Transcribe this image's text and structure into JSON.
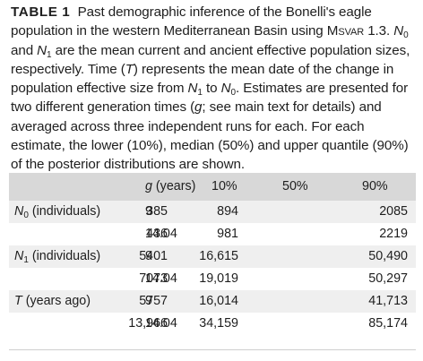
{
  "caption": {
    "label": "TABLE 1",
    "text_1": "Past demographic inference of the Bonelli's eagle population in the western Mediterranean Basin using ",
    "software": "Msvar",
    "text_2": " 1.3. ",
    "n": "N",
    "sub0": "0",
    "and": " and ",
    "sub1": "1",
    "text_3": " are the mean current and ancient effective population sizes, respectively. Time (",
    "t": "T",
    "text_4": ") represents the mean date of the change in population effective size from ",
    "to": " to ",
    "text_5": ". Estimates are presented for two different generation times (",
    "g": "g",
    "text_6": "; see main text for details) and averaged across three independent runs for each. For each estimate, the lower (10%), median (50%) and upper quantile (90%) of the posterior distributions are shown."
  },
  "table": {
    "headers": {
      "g_var": "g",
      "g_unit": " (years)",
      "q10": "10%",
      "q50": "50%",
      "q90": "90%"
    },
    "params": {
      "n0_sym": "N",
      "n0_sub": "0",
      "n0_unit": " (individuals)",
      "n1_sym": "N",
      "n1_sub": "1",
      "n1_unit": " (individuals)",
      "t_sym": "T",
      "t_unit": " (years ago)"
    },
    "rows": [
      {
        "g": "9",
        "q10": "385",
        "q50": "894",
        "q90": "2085"
      },
      {
        "g": "14.04",
        "q10": "436",
        "q50": "981",
        "q90": "2219"
      },
      {
        "g": "9",
        "q10": "5401",
        "q50": "16,615",
        "q90": "50,490"
      },
      {
        "g": "14.04",
        "q10": "7073",
        "q50": "19,019",
        "q90": "50,297"
      },
      {
        "g": "9",
        "q10": "5757",
        "q50": "16,014",
        "q90": "41,713"
      },
      {
        "g": "14.04",
        "q10": "13,966",
        "q50": "34,159",
        "q90": "85,174"
      }
    ]
  }
}
